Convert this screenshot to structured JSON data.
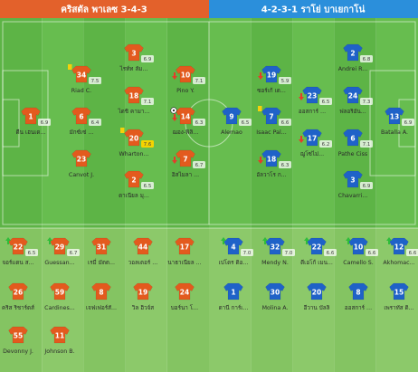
{
  "header": {
    "home": "คริสตัล พาเลซ 3-4-3",
    "away": "4-2-3-1 ราโย่ บาเยกาโน่"
  },
  "home": {
    "lineup": [
      {
        "number": 1,
        "name": "ดีน เฮนเด...",
        "rating": "6.9",
        "events": []
      },
      {
        "number": 34,
        "name": "Riad C.",
        "rating": "7.5",
        "events": [
          "yellow_card"
        ]
      },
      {
        "number": 6,
        "name": "มักซ์เซ่ ...",
        "rating": "6.4",
        "events": []
      },
      {
        "number": 23,
        "name": "Canvot J.",
        "events": []
      },
      {
        "number": 3,
        "name": "ไรท์ท ลัม...",
        "rating": "6.9",
        "events": []
      },
      {
        "number": 18,
        "name": "ไดชิ คามา...",
        "rating": "7.1",
        "events": []
      },
      {
        "number": 20,
        "name": "Wharton...",
        "rating": "7.6",
        "events": [
          "yellow_card",
          "top_rated"
        ]
      },
      {
        "number": 2,
        "name": "ดาเนียล มุ...",
        "rating": "6.5",
        "events": []
      },
      {
        "number": 10,
        "name": "Pino Y.",
        "rating": "7.1",
        "events": [
          "sub_off"
        ]
      },
      {
        "number": 14,
        "name": "ฌอง-ฟิลิ...",
        "rating": "6.3",
        "events": [
          "goal",
          "sub_off"
        ]
      },
      {
        "number": 7,
        "name": "อิสไมลา ...",
        "rating": "6.7",
        "events": [
          "sub_off"
        ]
      }
    ],
    "bench": [
      {
        "number": 22,
        "name": "จอร์แดน ส...",
        "rating": "6.5",
        "events": [
          "sub_on"
        ]
      },
      {
        "number": 29,
        "name": "Guessan...",
        "rating": "6.7",
        "events": [
          "sub_on"
        ]
      },
      {
        "number": 31,
        "name": "เรมี่ มัตต...",
        "events": []
      },
      {
        "number": 44,
        "name": "วอลเตอร์ ...",
        "events": []
      },
      {
        "number": 17,
        "name": "นาธาเนียล ...",
        "events": []
      },
      {
        "number": 26,
        "name": "คริส ริชาร์ดส์",
        "events": []
      },
      {
        "number": 59,
        "name": "Cardines...",
        "events": []
      },
      {
        "number": 8,
        "name": "เจฟเฟอร์สั...",
        "events": []
      },
      {
        "number": 19,
        "name": "วิล ฮิวจ์ส",
        "events": []
      },
      {
        "number": 24,
        "name": "บอร์นา โ...",
        "events": []
      },
      {
        "number": 55,
        "name": "Devonny J.",
        "events": []
      },
      {
        "number": 11,
        "name": "Johnson B.",
        "events": []
      }
    ]
  },
  "away": {
    "lineup": [
      {
        "number": 13,
        "name": "Batalla A.",
        "rating": "6.9",
        "events": []
      },
      {
        "number": 2,
        "name": "Andrei R...",
        "rating": "6.8",
        "events": []
      },
      {
        "number": 24,
        "name": "ฟลอริอัน...",
        "rating": "7.3",
        "events": []
      },
      {
        "number": 6,
        "name": "Pathe Ciss",
        "rating": "7.1",
        "events": []
      },
      {
        "number": 3,
        "name": "Chavarri...",
        "rating": "6.9",
        "events": []
      },
      {
        "number": 23,
        "name": "ออสการ์ ...",
        "rating": "6.5",
        "events": [
          "sub_off"
        ]
      },
      {
        "number": 17,
        "name": "ฌูโซ่ไม่...",
        "rating": "6.2",
        "events": [
          "sub_off"
        ]
      },
      {
        "number": 19,
        "name": "ซอร์เก้ เด...",
        "rating": "5.9",
        "events": [
          "sub_off"
        ]
      },
      {
        "number": 7,
        "name": "Isaac Pal...",
        "rating": "6.6",
        "events": [
          "yellow_card"
        ]
      },
      {
        "number": 18,
        "name": "อัลวาโร ก...",
        "rating": "6.3",
        "events": [
          "sub_off"
        ]
      },
      {
        "number": 9,
        "name": "Alemao",
        "rating": "6.5",
        "events": []
      }
    ],
    "bench": [
      {
        "number": 4,
        "name": "เปโดร ดิอ...",
        "rating": "7.0",
        "events": [
          "sub_on"
        ]
      },
      {
        "number": 32,
        "name": "Mendy N.",
        "rating": "7.0",
        "events": [
          "sub_on"
        ]
      },
      {
        "number": 22,
        "name": "ดีเอโก้ เมน...",
        "rating": "6.6",
        "events": [
          "sub_on"
        ]
      },
      {
        "number": 10,
        "name": "Camello S.",
        "rating": "6.6",
        "events": [
          "sub_on"
        ]
      },
      {
        "number": 12,
        "name": "Akhomac...",
        "rating": "6.6",
        "events": [
          "sub_on"
        ]
      },
      {
        "number": 1,
        "name": "ดานี การ์เ...",
        "events": []
      },
      {
        "number": 30,
        "name": "Molina A.",
        "events": []
      },
      {
        "number": 20,
        "name": "อีวาน บัลลิ",
        "events": []
      },
      {
        "number": 8,
        "name": "ออสการ์ ...",
        "events": []
      },
      {
        "number": 15,
        "name": "เพราทัส ดิ...",
        "events": []
      }
    ]
  }
}
